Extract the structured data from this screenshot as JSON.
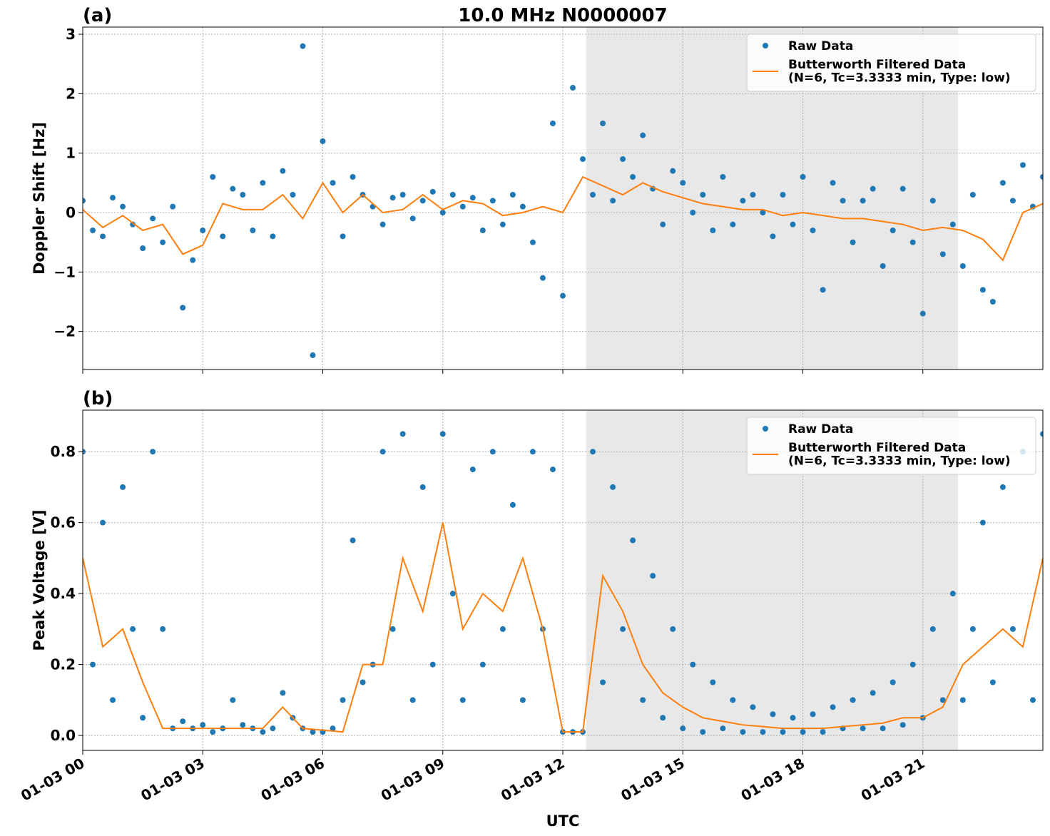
{
  "chart_data": [
    {
      "type": "line",
      "panel_label": "(a)",
      "title": "10.0 MHz N0000007",
      "ylabel": "Doppler Shift [Hz]",
      "xlim": [
        0,
        24
      ],
      "xticks": [
        0,
        3,
        6,
        9,
        12,
        15,
        18,
        21
      ],
      "ylim": [
        -2.64,
        3.12
      ],
      "yticks": [
        {
          "value": -2,
          "label": "−2"
        },
        {
          "value": -1,
          "label": "−1"
        },
        0,
        1,
        2,
        3
      ],
      "grid": true,
      "legend": "upper right",
      "shade": [
        12.58,
        21.88
      ],
      "shade_color": "#e8e8e8",
      "series": [
        {
          "name": "Raw Data",
          "style": "markers",
          "color": "#1f77b4",
          "x": [
            0,
            0.25,
            0.5,
            0.75,
            1,
            1.25,
            1.5,
            1.75,
            2,
            2.25,
            2.5,
            2.75,
            3,
            3.25,
            3.5,
            3.75,
            4,
            4.25,
            4.5,
            4.75,
            5,
            5.25,
            5.5,
            5.75,
            6,
            6.25,
            6.5,
            6.75,
            7,
            7.25,
            7.5,
            7.75,
            8,
            8.25,
            8.5,
            8.75,
            9,
            9.25,
            9.5,
            9.75,
            10,
            10.25,
            10.5,
            10.75,
            11,
            11.25,
            11.5,
            11.75,
            12,
            12.25,
            12.5,
            12.75,
            13,
            13.25,
            13.5,
            13.75,
            14,
            14.25,
            14.5,
            14.75,
            15,
            15.25,
            15.5,
            15.75,
            16,
            16.25,
            16.5,
            16.75,
            17,
            17.25,
            17.5,
            17.75,
            18,
            18.25,
            18.5,
            18.75,
            19,
            19.25,
            19.5,
            19.75,
            20,
            20.25,
            20.5,
            20.75,
            21,
            21.25,
            21.5,
            21.75,
            22,
            22.25,
            22.5,
            22.75,
            23,
            23.25,
            23.5,
            23.75,
            24
          ],
          "values": [
            0.2,
            -0.3,
            -0.4,
            0.25,
            0.1,
            -0.2,
            -0.6,
            -0.1,
            -0.5,
            0.1,
            -1.6,
            -0.8,
            -0.3,
            0.6,
            -0.4,
            0.4,
            0.3,
            -0.3,
            0.5,
            -0.4,
            0.7,
            0.3,
            2.8,
            -2.4,
            1.2,
            0.5,
            -0.4,
            0.6,
            0.3,
            0.1,
            -0.2,
            0.25,
            0.3,
            -0.1,
            0.2,
            0.35,
            0.0,
            0.3,
            0.1,
            0.25,
            -0.3,
            0.2,
            -0.2,
            0.3,
            0.1,
            -0.5,
            -1.1,
            1.5,
            -1.4,
            2.1,
            0.9,
            0.3,
            1.5,
            0.2,
            0.9,
            0.6,
            1.3,
            0.4,
            -0.2,
            0.7,
            0.5,
            0.0,
            0.3,
            -0.3,
            0.6,
            -0.2,
            0.2,
            0.3,
            0.0,
            -0.4,
            0.3,
            -0.2,
            0.6,
            -0.3,
            -1.3,
            0.5,
            0.2,
            -0.5,
            0.2,
            0.4,
            -0.9,
            -0.3,
            0.4,
            -0.5,
            -1.7,
            0.2,
            -0.7,
            -0.2,
            -0.9,
            0.3,
            -1.3,
            -1.5,
            0.5,
            0.2,
            0.8,
            0.1,
            0.6
          ]
        },
        {
          "name": "Butterworth Filtered Data\n(N=6, Tc=3.3333 min, Type: low)",
          "style": "line",
          "color": "#ff7f0e",
          "x": [
            0,
            0.5,
            1,
            1.5,
            2,
            2.5,
            3,
            3.5,
            4,
            4.5,
            5,
            5.5,
            6,
            6.5,
            7,
            7.5,
            8,
            8.5,
            9,
            9.5,
            10,
            10.5,
            11,
            11.5,
            12,
            12.5,
            13,
            13.5,
            14,
            14.5,
            15,
            15.5,
            16,
            16.5,
            17,
            17.5,
            18,
            18.5,
            19,
            19.5,
            20,
            20.5,
            21,
            21.5,
            22,
            22.5,
            23,
            23.5,
            24
          ],
          "values": [
            0.05,
            -0.25,
            -0.05,
            -0.3,
            -0.2,
            -0.7,
            -0.55,
            0.15,
            0.05,
            0.05,
            0.3,
            -0.1,
            0.5,
            0.0,
            0.3,
            0.0,
            0.05,
            0.3,
            0.05,
            0.2,
            0.15,
            -0.05,
            0.0,
            0.1,
            0.0,
            0.6,
            0.45,
            0.3,
            0.5,
            0.35,
            0.25,
            0.15,
            0.1,
            0.05,
            0.05,
            -0.05,
            0.0,
            -0.05,
            -0.1,
            -0.1,
            -0.15,
            -0.2,
            -0.3,
            -0.25,
            -0.3,
            -0.45,
            -0.8,
            0.0,
            0.15
          ]
        }
      ]
    },
    {
      "type": "line",
      "panel_label": "(b)",
      "ylabel": "Peak Voltage [V]",
      "xlabel": "UTC",
      "xlim": [
        0,
        24
      ],
      "xticks": [
        {
          "value": 0,
          "label": "01-03 00"
        },
        {
          "value": 3,
          "label": "01-03 03"
        },
        {
          "value": 6,
          "label": "01-03 06"
        },
        {
          "value": 9,
          "label": "01-03 09"
        },
        {
          "value": 12,
          "label": "01-03 12"
        },
        {
          "value": 15,
          "label": "01-03 15"
        },
        {
          "value": 18,
          "label": "01-03 18"
        },
        {
          "value": 21,
          "label": "01-03 21"
        }
      ],
      "ylim": [
        -0.042,
        0.917
      ],
      "yticks": [
        {
          "value": 0,
          "label": "0.0"
        },
        0.2,
        0.4,
        0.6,
        0.8
      ],
      "grid": true,
      "legend": "upper right",
      "shade": [
        12.58,
        21.88
      ],
      "shade_color": "#e8e8e8",
      "series": [
        {
          "name": "Raw Data",
          "style": "markers",
          "color": "#1f77b4",
          "x": [
            0,
            0.25,
            0.5,
            0.75,
            1,
            1.25,
            1.5,
            1.75,
            2,
            2.25,
            2.5,
            2.75,
            3,
            3.25,
            3.5,
            3.75,
            4,
            4.25,
            4.5,
            4.75,
            5,
            5.25,
            5.5,
            5.75,
            6,
            6.25,
            6.5,
            6.75,
            7,
            7.25,
            7.5,
            7.75,
            8,
            8.25,
            8.5,
            8.75,
            9,
            9.25,
            9.5,
            9.75,
            10,
            10.25,
            10.5,
            10.75,
            11,
            11.25,
            11.5,
            11.75,
            12,
            12.25,
            12.5,
            12.75,
            13,
            13.25,
            13.5,
            13.75,
            14,
            14.25,
            14.5,
            14.75,
            15,
            15.25,
            15.5,
            15.75,
            16,
            16.25,
            16.5,
            16.75,
            17,
            17.25,
            17.5,
            17.75,
            18,
            18.25,
            18.5,
            18.75,
            19,
            19.25,
            19.5,
            19.75,
            20,
            20.25,
            20.5,
            20.75,
            21,
            21.25,
            21.5,
            21.75,
            22,
            22.25,
            22.5,
            22.75,
            23,
            23.25,
            23.5,
            23.75,
            24
          ],
          "values": [
            0.8,
            0.2,
            0.6,
            0.1,
            0.7,
            0.3,
            0.05,
            0.8,
            0.3,
            0.02,
            0.04,
            0.02,
            0.03,
            0.01,
            0.02,
            0.1,
            0.03,
            0.02,
            0.01,
            0.02,
            0.12,
            0.05,
            0.02,
            0.01,
            0.01,
            0.02,
            0.1,
            0.55,
            0.15,
            0.2,
            0.8,
            0.3,
            0.85,
            0.1,
            0.7,
            0.2,
            0.85,
            0.4,
            0.1,
            0.75,
            0.2,
            0.8,
            0.3,
            0.65,
            0.1,
            0.8,
            0.3,
            0.75,
            0.01,
            0.01,
            0.01,
            0.8,
            0.15,
            0.7,
            0.3,
            0.55,
            0.1,
            0.45,
            0.05,
            0.3,
            0.02,
            0.2,
            0.01,
            0.15,
            0.02,
            0.1,
            0.01,
            0.08,
            0.01,
            0.06,
            0.01,
            0.05,
            0.01,
            0.06,
            0.01,
            0.08,
            0.02,
            0.1,
            0.02,
            0.12,
            0.02,
            0.15,
            0.03,
            0.2,
            0.05,
            0.3,
            0.1,
            0.4,
            0.1,
            0.3,
            0.6,
            0.15,
            0.7,
            0.3,
            0.8,
            0.1,
            0.85
          ]
        },
        {
          "name": "Butterworth Filtered Data\n(N=6, Tc=3.3333 min, Type: low)",
          "style": "line",
          "color": "#ff7f0e",
          "x": [
            0,
            0.5,
            1,
            1.5,
            2,
            2.5,
            3,
            3.5,
            4,
            4.5,
            5,
            5.5,
            6,
            6.5,
            7,
            7.5,
            8,
            8.5,
            9,
            9.5,
            10,
            10.5,
            11,
            11.5,
            12,
            12.5,
            13,
            13.5,
            14,
            14.5,
            15,
            15.5,
            16,
            16.5,
            17,
            17.5,
            18,
            18.5,
            19,
            19.5,
            20,
            20.5,
            21,
            21.5,
            22,
            22.5,
            23,
            23.5,
            24
          ],
          "values": [
            0.5,
            0.25,
            0.3,
            0.15,
            0.02,
            0.02,
            0.02,
            0.02,
            0.02,
            0.02,
            0.08,
            0.02,
            0.015,
            0.01,
            0.2,
            0.2,
            0.5,
            0.35,
            0.6,
            0.3,
            0.4,
            0.35,
            0.5,
            0.3,
            0.01,
            0.01,
            0.45,
            0.35,
            0.2,
            0.12,
            0.08,
            0.05,
            0.04,
            0.03,
            0.025,
            0.02,
            0.02,
            0.02,
            0.025,
            0.03,
            0.035,
            0.05,
            0.05,
            0.08,
            0.2,
            0.25,
            0.3,
            0.25,
            0.5
          ]
        }
      ]
    }
  ]
}
